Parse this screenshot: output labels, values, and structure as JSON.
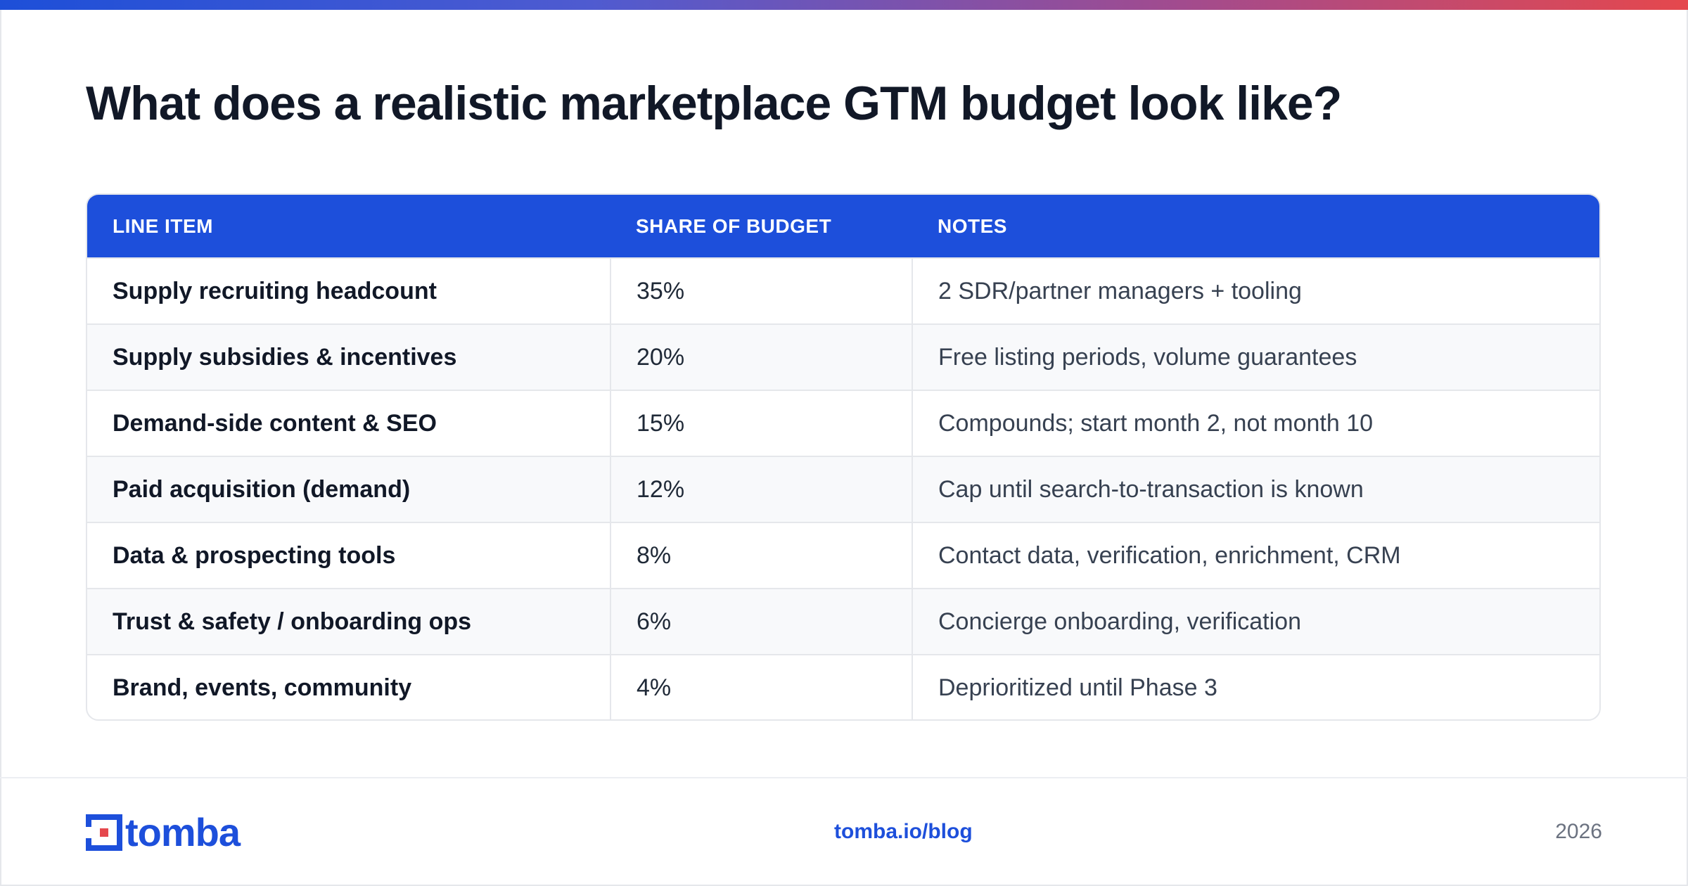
{
  "title": "What does a realistic marketplace GTM budget look like?",
  "table": {
    "headers": [
      "LINE ITEM",
      "SHARE OF BUDGET",
      "NOTES"
    ],
    "rows": [
      {
        "item": "Supply recruiting headcount",
        "share": "35%",
        "notes": "2 SDR/partner managers + tooling"
      },
      {
        "item": "Supply subsidies & incentives",
        "share": "20%",
        "notes": "Free listing periods, volume guarantees"
      },
      {
        "item": "Demand-side content & SEO",
        "share": "15%",
        "notes": "Compounds; start month 2, not month 10"
      },
      {
        "item": "Paid acquisition (demand)",
        "share": "12%",
        "notes": "Cap until search-to-transaction is known"
      },
      {
        "item": "Data & prospecting tools",
        "share": "8%",
        "notes": "Contact data, verification, enrichment, CRM"
      },
      {
        "item": "Trust & safety / onboarding ops",
        "share": "6%",
        "notes": "Concierge onboarding, verification"
      },
      {
        "item": "Brand, events, community",
        "share": "4%",
        "notes": "Deprioritized until Phase 3"
      }
    ]
  },
  "footer": {
    "logo_text": "tomba",
    "logo_icon": "tomba-logo-icon",
    "link": "tomba.io/blog",
    "year": "2026"
  },
  "colors": {
    "accent": "#1d4fdb",
    "title": "#111827",
    "gradient": [
      "#1d4fd8",
      "#e5484d"
    ]
  }
}
